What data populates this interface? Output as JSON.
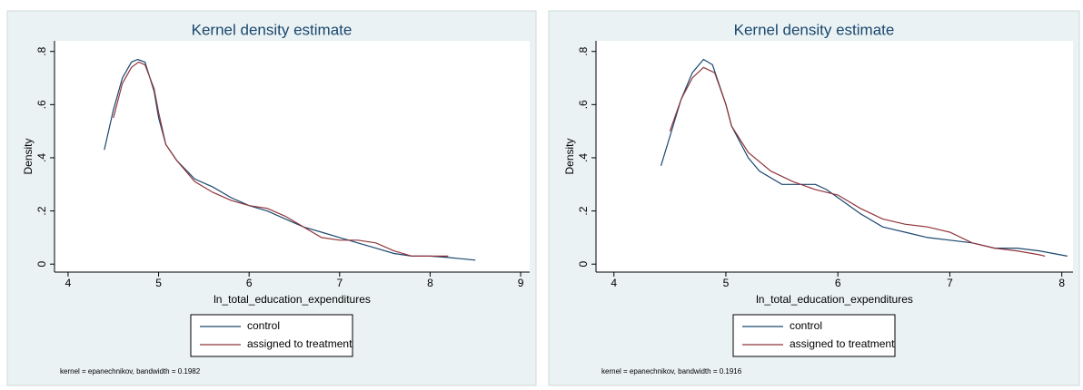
{
  "chart_data": [
    {
      "type": "line",
      "title": "Kernel density estimate",
      "xlabel": "ln_total_education_expenditures",
      "ylabel": "Density",
      "note": "kernel = epanechnikov, bandwidth = 0.1982",
      "xlim": [
        3.85,
        9.1
      ],
      "xticks": [
        4,
        5,
        6,
        7,
        8,
        9
      ],
      "ylim": [
        -0.03,
        0.84
      ],
      "yticks": [
        0,
        {
          "value": 0.2,
          "label": ".2"
        },
        {
          "value": 0.4,
          "label": ".4"
        },
        {
          "value": 0.6,
          "label": ".6"
        },
        {
          "value": 0.8,
          "label": ".8"
        }
      ],
      "series": [
        {
          "name": "control",
          "color": "#1a476f",
          "x": [
            4.4,
            4.5,
            4.6,
            4.7,
            4.77,
            4.85,
            4.95,
            5.0,
            5.08,
            5.2,
            5.4,
            5.6,
            5.8,
            6.0,
            6.2,
            6.4,
            6.6,
            6.8,
            7.0,
            7.2,
            7.4,
            7.6,
            7.8,
            8.0,
            8.2,
            8.5
          ],
          "values": [
            0.43,
            0.58,
            0.7,
            0.76,
            0.77,
            0.76,
            0.65,
            0.55,
            0.45,
            0.39,
            0.32,
            0.29,
            0.25,
            0.22,
            0.2,
            0.17,
            0.14,
            0.12,
            0.1,
            0.08,
            0.06,
            0.04,
            0.03,
            0.03,
            0.025,
            0.015
          ]
        },
        {
          "name": "assigned to treatment",
          "color": "#90353b",
          "x": [
            4.5,
            4.6,
            4.7,
            4.78,
            4.85,
            4.95,
            5.0,
            5.08,
            5.2,
            5.4,
            5.6,
            5.8,
            6.0,
            6.2,
            6.4,
            6.6,
            6.8,
            7.0,
            7.2,
            7.4,
            7.6,
            7.8,
            8.0,
            8.2
          ],
          "values": [
            0.55,
            0.68,
            0.74,
            0.76,
            0.75,
            0.66,
            0.57,
            0.45,
            0.39,
            0.31,
            0.27,
            0.24,
            0.22,
            0.21,
            0.18,
            0.14,
            0.1,
            0.09,
            0.09,
            0.08,
            0.05,
            0.03,
            0.03,
            0.03
          ]
        }
      ]
    },
    {
      "type": "line",
      "title": "Kernel density estimate",
      "xlabel": "ln_total_education_expenditures",
      "ylabel": "Density",
      "note": "kernel = epanechnikov, bandwidth = 0.1916",
      "xlim": [
        3.84,
        8.1
      ],
      "xticks": [
        4,
        5,
        6,
        7,
        8
      ],
      "ylim": [
        -0.03,
        0.84
      ],
      "yticks": [
        0,
        {
          "value": 0.2,
          "label": ".2"
        },
        {
          "value": 0.4,
          "label": ".4"
        },
        {
          "value": 0.6,
          "label": ".6"
        },
        {
          "value": 0.8,
          "label": ".8"
        }
      ],
      "series": [
        {
          "name": "control",
          "color": "#1a476f",
          "x": [
            4.42,
            4.5,
            4.6,
            4.7,
            4.8,
            4.88,
            5.0,
            5.05,
            5.2,
            5.3,
            5.5,
            5.6,
            5.8,
            5.9,
            6.0,
            6.2,
            6.4,
            6.6,
            6.8,
            7.0,
            7.2,
            7.4,
            7.6,
            7.8,
            8.05
          ],
          "values": [
            0.37,
            0.48,
            0.62,
            0.72,
            0.77,
            0.75,
            0.6,
            0.52,
            0.4,
            0.35,
            0.3,
            0.3,
            0.3,
            0.28,
            0.25,
            0.19,
            0.14,
            0.12,
            0.1,
            0.09,
            0.08,
            0.06,
            0.06,
            0.05,
            0.03
          ]
        },
        {
          "name": "assigned to treatment",
          "color": "#90353b",
          "x": [
            4.5,
            4.6,
            4.7,
            4.8,
            4.9,
            5.0,
            5.05,
            5.2,
            5.4,
            5.6,
            5.8,
            6.0,
            6.2,
            6.4,
            6.6,
            6.8,
            7.0,
            7.2,
            7.4,
            7.6,
            7.8,
            7.85
          ],
          "values": [
            0.5,
            0.62,
            0.7,
            0.74,
            0.72,
            0.6,
            0.52,
            0.42,
            0.35,
            0.31,
            0.28,
            0.26,
            0.21,
            0.17,
            0.15,
            0.14,
            0.12,
            0.08,
            0.06,
            0.05,
            0.035,
            0.03
          ]
        }
      ]
    }
  ]
}
